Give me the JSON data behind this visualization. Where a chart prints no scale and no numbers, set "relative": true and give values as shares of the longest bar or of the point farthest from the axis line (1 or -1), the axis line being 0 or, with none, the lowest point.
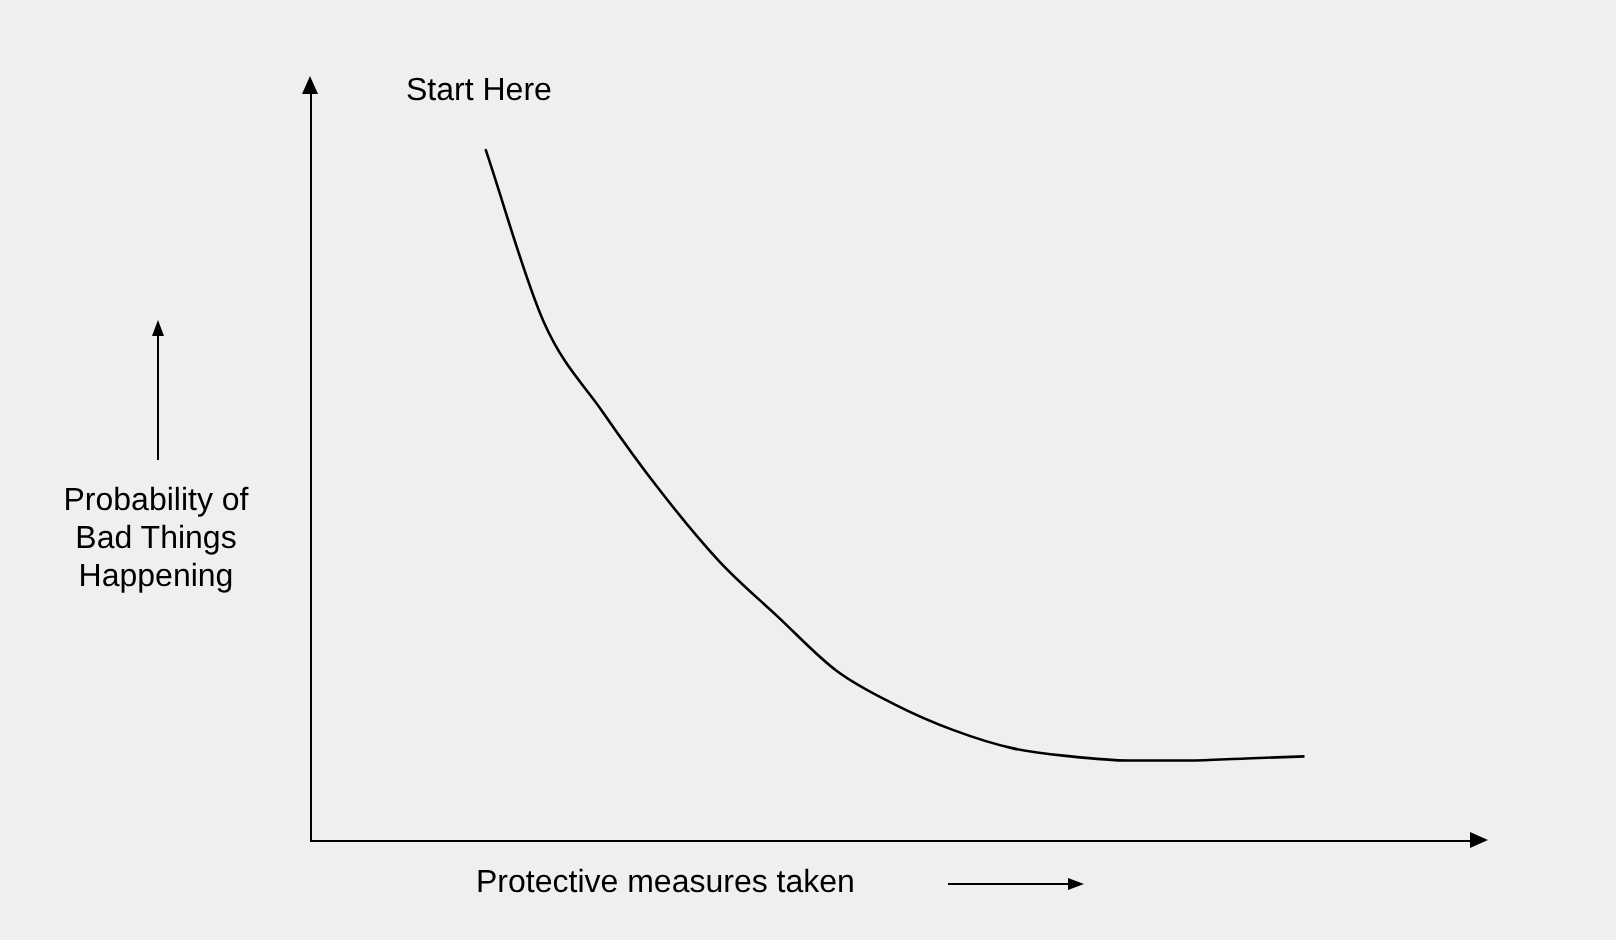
{
  "chart_data": {
    "type": "line",
    "relative": true,
    "xlabel": "Protective measures taken",
    "ylabel": "Probability of Bad Things Happening",
    "annotations": [
      "Start Here"
    ],
    "marker": "none",
    "line_style": "solid",
    "legend": false,
    "categories": [
      null,
      null,
      null,
      null,
      null,
      null,
      null,
      null,
      null,
      null,
      null,
      null,
      null,
      null,
      null,
      null,
      null,
      null,
      null,
      null,
      null
    ],
    "series": [
      {
        "color": "#000000",
        "values": [
          null,
          null,
          null,
          1,
          0.749,
          0.62,
          0.504,
          0.403,
          0.323,
          0.245,
          0.196,
          0.159,
          0.133,
          0.121,
          0.115,
          0.115,
          0.118,
          0.121,
          null,
          null,
          null
        ]
      }
    ]
  }
}
